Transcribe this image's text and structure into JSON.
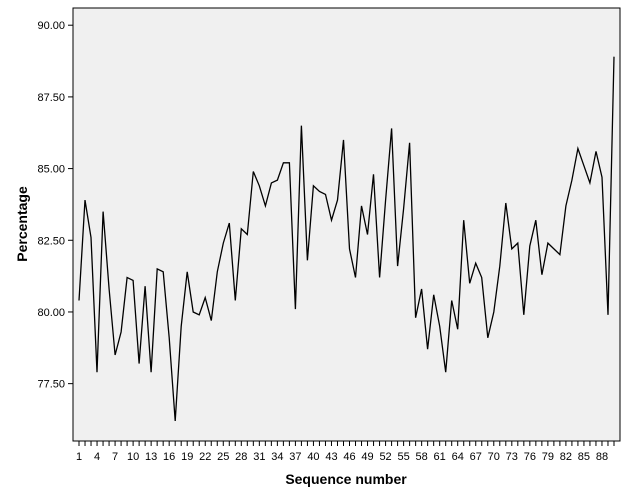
{
  "chart_data": {
    "type": "line",
    "xlabel": "Sequence number",
    "ylabel": "Percentage",
    "x_tick_labels": [
      "1",
      "4",
      "7",
      "10",
      "13",
      "16",
      "19",
      "22",
      "25",
      "28",
      "31",
      "34",
      "37",
      "40",
      "43",
      "46",
      "49",
      "52",
      "55",
      "58",
      "61",
      "64",
      "67",
      "70",
      "73",
      "76",
      "79",
      "82",
      "85",
      "88"
    ],
    "y_tick_labels": [
      "77.50",
      "80.00",
      "82.50",
      "85.00",
      "87.50",
      "90.00"
    ],
    "y_ticks": [
      77.5,
      80.0,
      82.5,
      85.0,
      87.5,
      90.0
    ],
    "xlim": [
      0,
      91
    ],
    "ylim": [
      75.5,
      90.6
    ],
    "grid": false,
    "background": "#f0f0f0",
    "line_color": "#000000",
    "series": [
      {
        "x": [
          1,
          2,
          3,
          4,
          5,
          6,
          7,
          8,
          9,
          10,
          11,
          12,
          13,
          14,
          15,
          16,
          17,
          18,
          19,
          20,
          21,
          22,
          23,
          24,
          25,
          26,
          27,
          28,
          29,
          30,
          31,
          32,
          33,
          34,
          35,
          36,
          37,
          38,
          39,
          40,
          41,
          42,
          43,
          44,
          45,
          46,
          47,
          48,
          49,
          50,
          51,
          52,
          53,
          54,
          55,
          56,
          57,
          58,
          59,
          60,
          61,
          62,
          63,
          64,
          65,
          66,
          67,
          68,
          69,
          70,
          71,
          72,
          73,
          74,
          75,
          76,
          77,
          78,
          79,
          80,
          81,
          82,
          83,
          84,
          85,
          86,
          87,
          88,
          89,
          90
        ],
        "values": [
          80.4,
          83.9,
          82.6,
          77.9,
          83.5,
          80.8,
          78.5,
          79.3,
          81.2,
          81.1,
          78.2,
          80.9,
          77.9,
          81.5,
          81.4,
          79.1,
          76.2,
          79.5,
          81.4,
          80.0,
          79.9,
          80.5,
          79.7,
          81.4,
          82.4,
          83.1,
          80.4,
          82.9,
          82.7,
          84.9,
          84.4,
          83.7,
          84.5,
          84.6,
          85.2,
          85.2,
          80.1,
          86.5,
          81.8,
          84.4,
          84.2,
          84.1,
          83.2,
          83.9,
          86.0,
          82.2,
          81.2,
          83.7,
          82.7,
          84.8,
          81.2,
          83.9,
          86.4,
          81.6,
          83.6,
          85.9,
          79.8,
          80.8,
          78.7,
          80.6,
          79.5,
          77.9,
          80.4,
          79.4,
          83.2,
          81.0,
          81.7,
          81.2,
          79.1,
          80.0,
          81.6,
          83.8,
          82.2,
          82.4,
          79.9,
          82.3,
          83.2,
          81.3,
          82.4,
          82.2,
          82.0,
          83.7,
          84.6,
          85.7,
          85.1,
          84.5,
          85.6,
          84.7,
          79.9,
          88.9
        ]
      }
    ]
  }
}
